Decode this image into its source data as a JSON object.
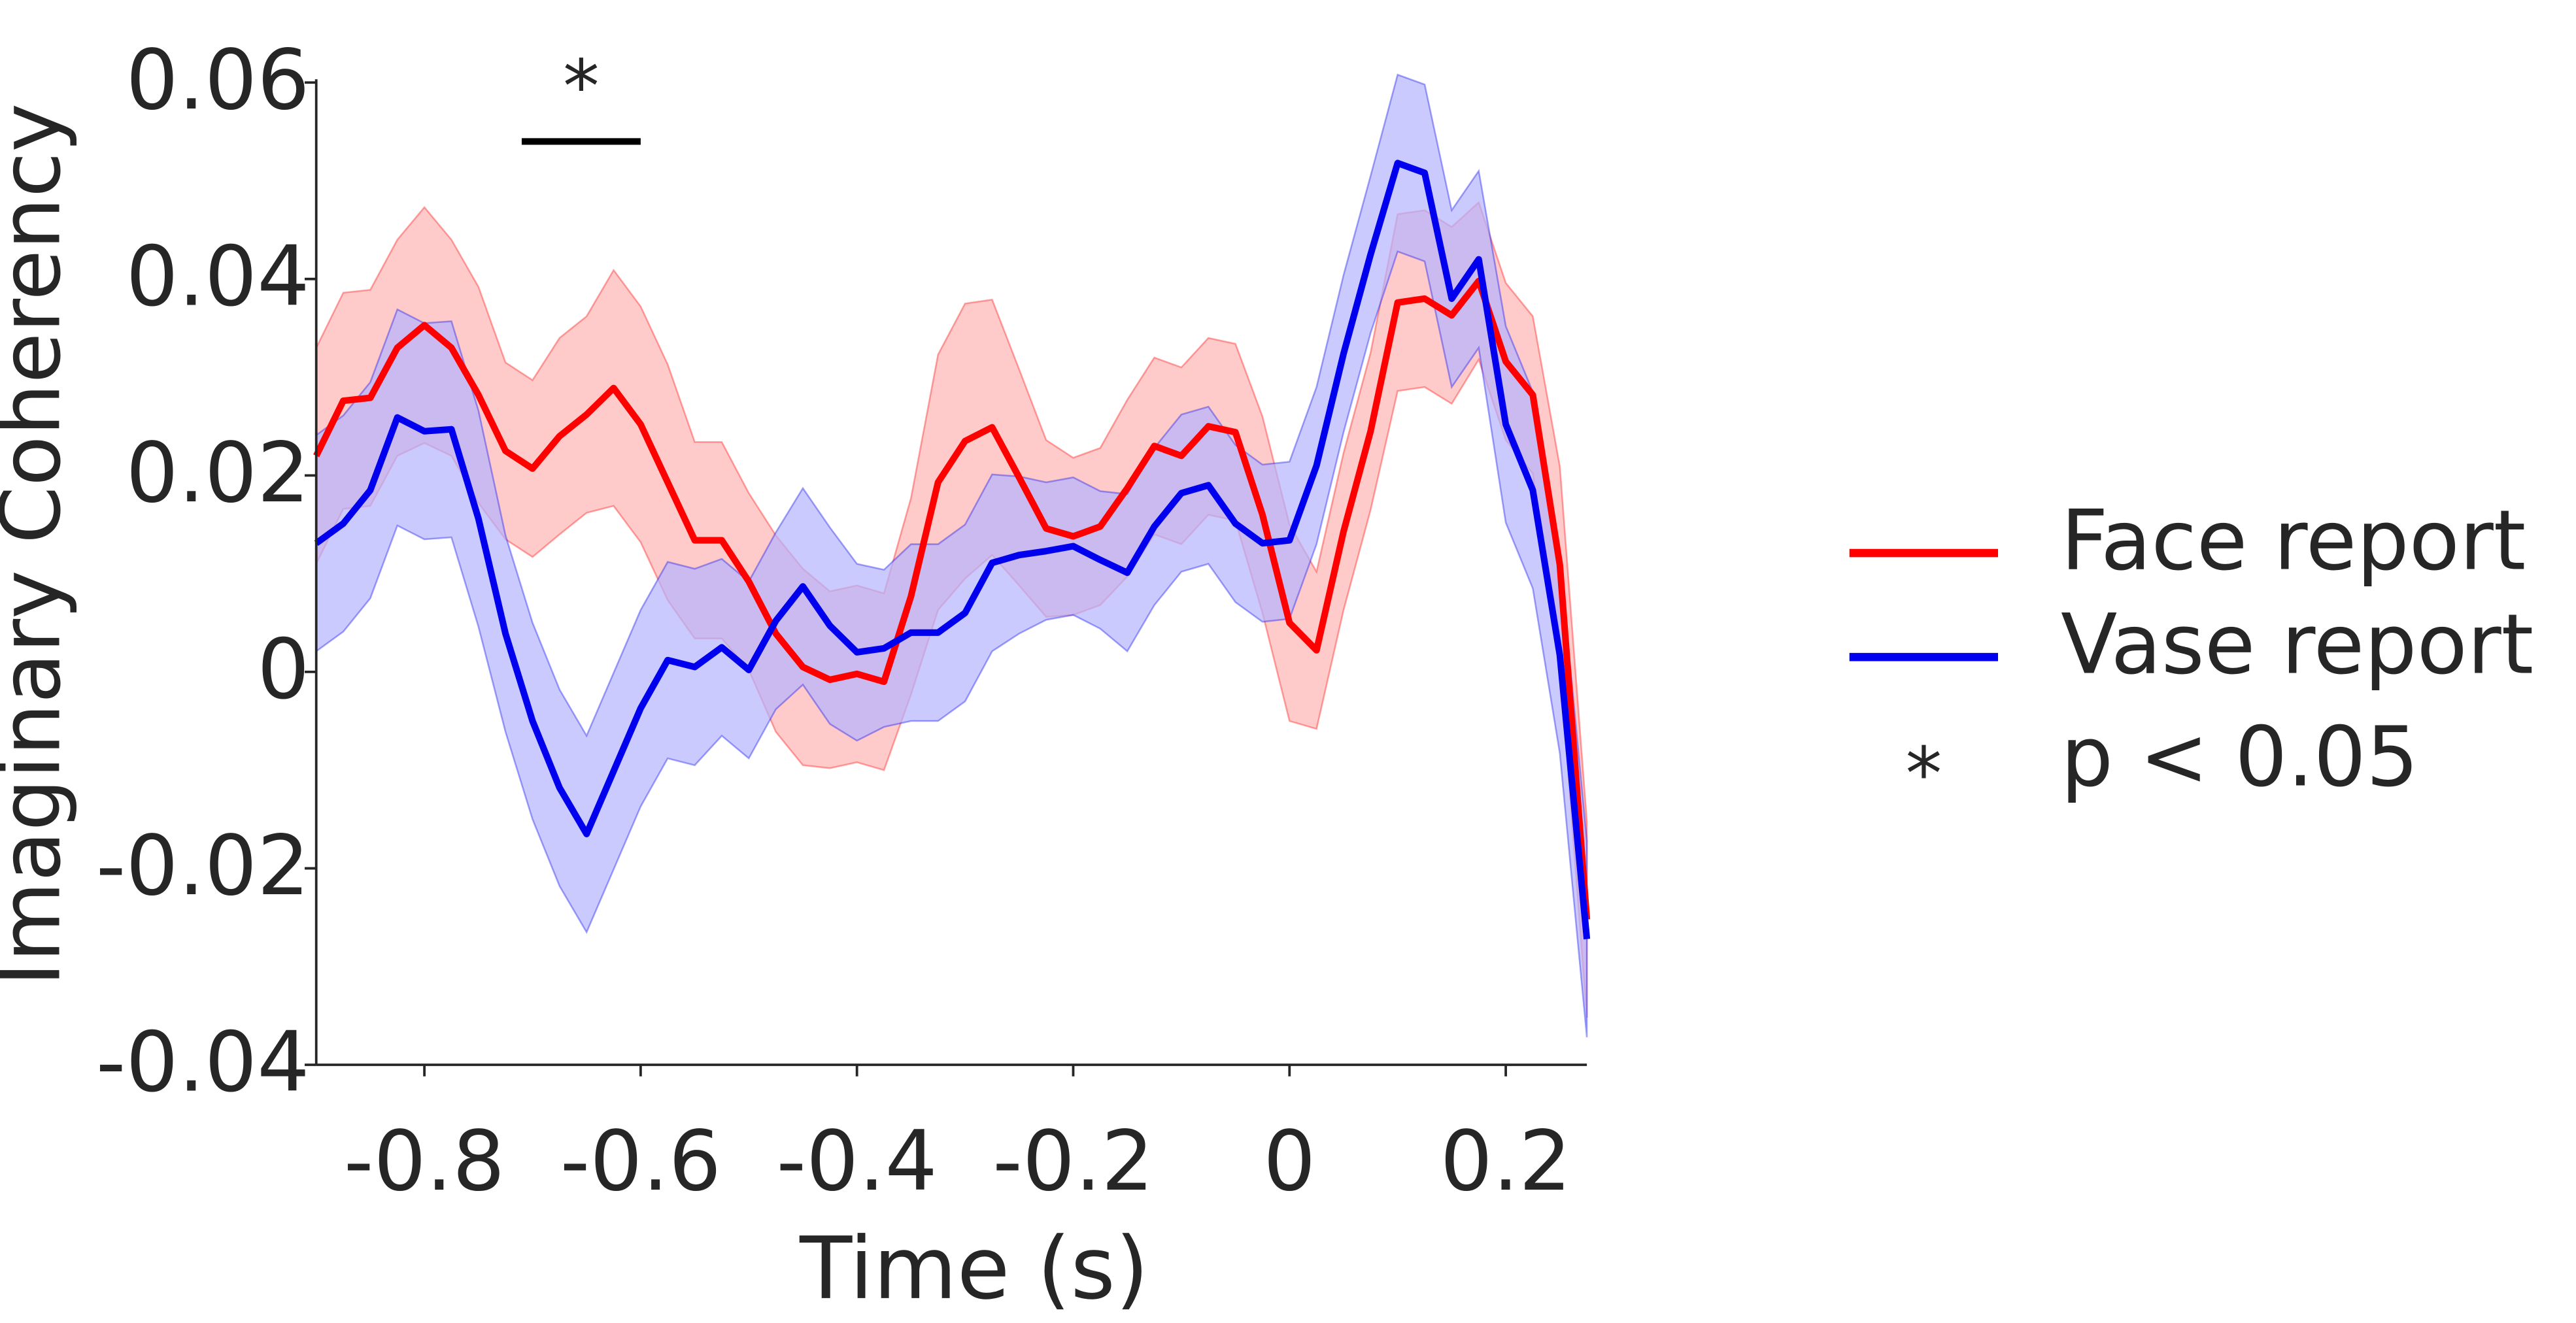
{
  "chart_data": {
    "type": "line",
    "xlabel": "Time (s)",
    "ylabel": "Imaginary Coherency",
    "x": [
      -0.9,
      -0.875,
      -0.85,
      -0.825,
      -0.8,
      -0.775,
      -0.75,
      -0.725,
      -0.7,
      -0.675,
      -0.65,
      -0.625,
      -0.6,
      -0.575,
      -0.55,
      -0.525,
      -0.5,
      -0.475,
      -0.45,
      -0.425,
      -0.4,
      -0.375,
      -0.35,
      -0.325,
      -0.3,
      -0.275,
      -0.25,
      -0.225,
      -0.2,
      -0.175,
      -0.15,
      -0.125,
      -0.1,
      -0.075,
      -0.05,
      -0.025,
      0,
      0.025,
      0.05,
      0.075,
      0.1,
      0.125,
      0.15,
      0.175,
      0.2,
      0.225,
      0.25,
      0.275
    ],
    "series": [
      {
        "name": "Face report",
        "color": "#ff0000",
        "band_color": "#ffb3b3",
        "values": [
          0.022,
          0.0276,
          0.0279,
          0.033,
          0.0353,
          0.033,
          0.0282,
          0.0225,
          0.0207,
          0.024,
          0.0262,
          0.0289,
          0.0252,
          0.0193,
          0.0134,
          0.0134,
          0.0092,
          0.0039,
          0.0005,
          -0.0008,
          -0.0002,
          -0.001,
          0.0077,
          0.0193,
          0.0235,
          0.0249,
          0.0198,
          0.0146,
          0.0138,
          0.0148,
          0.0187,
          0.023,
          0.022,
          0.025,
          0.0244,
          0.016,
          0.005,
          0.0022,
          0.0143,
          0.0245,
          0.0376,
          0.038,
          0.0363,
          0.0398,
          0.0316,
          0.0282,
          0.0109,
          -0.0252
        ],
        "errors": [
          0.011,
          0.011,
          0.011,
          0.011,
          0.012,
          0.011,
          0.011,
          0.009,
          0.009,
          0.01,
          0.01,
          0.012,
          0.012,
          0.012,
          0.01,
          0.01,
          0.009,
          0.01,
          0.01,
          0.009,
          0.009,
          0.009,
          0.01,
          0.013,
          0.014,
          0.013,
          0.011,
          0.009,
          0.008,
          0.008,
          0.009,
          0.009,
          0.009,
          0.009,
          0.009,
          0.01,
          0.01,
          0.008,
          0.008,
          0.008,
          0.009,
          0.009,
          0.009,
          0.008,
          0.008,
          0.008,
          0.01,
          0.01
        ]
      },
      {
        "name": "Vase report",
        "color": "#0000ee",
        "band_color": "#b3b3ff",
        "values": [
          0.0131,
          0.0151,
          0.0185,
          0.0259,
          0.0245,
          0.0247,
          0.0156,
          0.0039,
          -0.005,
          -0.0118,
          -0.0165,
          -0.0101,
          -0.0037,
          0.0012,
          0.0005,
          0.0025,
          0.0002,
          0.0052,
          0.0087,
          0.0047,
          0.002,
          0.0024,
          0.004,
          0.004,
          0.006,
          0.0111,
          0.0119,
          0.0123,
          0.0128,
          0.0114,
          0.0101,
          0.0148,
          0.0182,
          0.019,
          0.0151,
          0.0131,
          0.0134,
          0.021,
          0.0324,
          0.0425,
          0.0518,
          0.0508,
          0.038,
          0.042,
          0.0252,
          0.0185,
          0.0017,
          -0.0272
        ],
        "errors": [
          0.011,
          0.011,
          0.011,
          0.011,
          0.011,
          0.011,
          0.011,
          0.01,
          0.01,
          0.01,
          0.01,
          0.01,
          0.01,
          0.01,
          0.01,
          0.009,
          0.009,
          0.009,
          0.01,
          0.01,
          0.009,
          0.008,
          0.009,
          0.009,
          0.009,
          0.009,
          0.008,
          0.007,
          0.007,
          0.007,
          0.008,
          0.008,
          0.008,
          0.008,
          0.008,
          0.008,
          0.008,
          0.008,
          0.008,
          0.008,
          0.009,
          0.009,
          0.009,
          0.009,
          0.01,
          0.01,
          0.01,
          0.01
        ]
      }
    ],
    "significance": {
      "x": [
        -0.71,
        -0.6
      ],
      "y": 0.054,
      "label": "*",
      "legend": "p < 0.05"
    },
    "xlim": [
      -0.9,
      0.275
    ],
    "ylim": [
      -0.04,
      0.06
    ],
    "xticks": [
      -0.8,
      -0.6,
      -0.4,
      -0.2,
      0,
      0.2
    ],
    "yticks": [
      -0.04,
      -0.02,
      0,
      0.02,
      0.04,
      0.06
    ],
    "legend": "right"
  }
}
